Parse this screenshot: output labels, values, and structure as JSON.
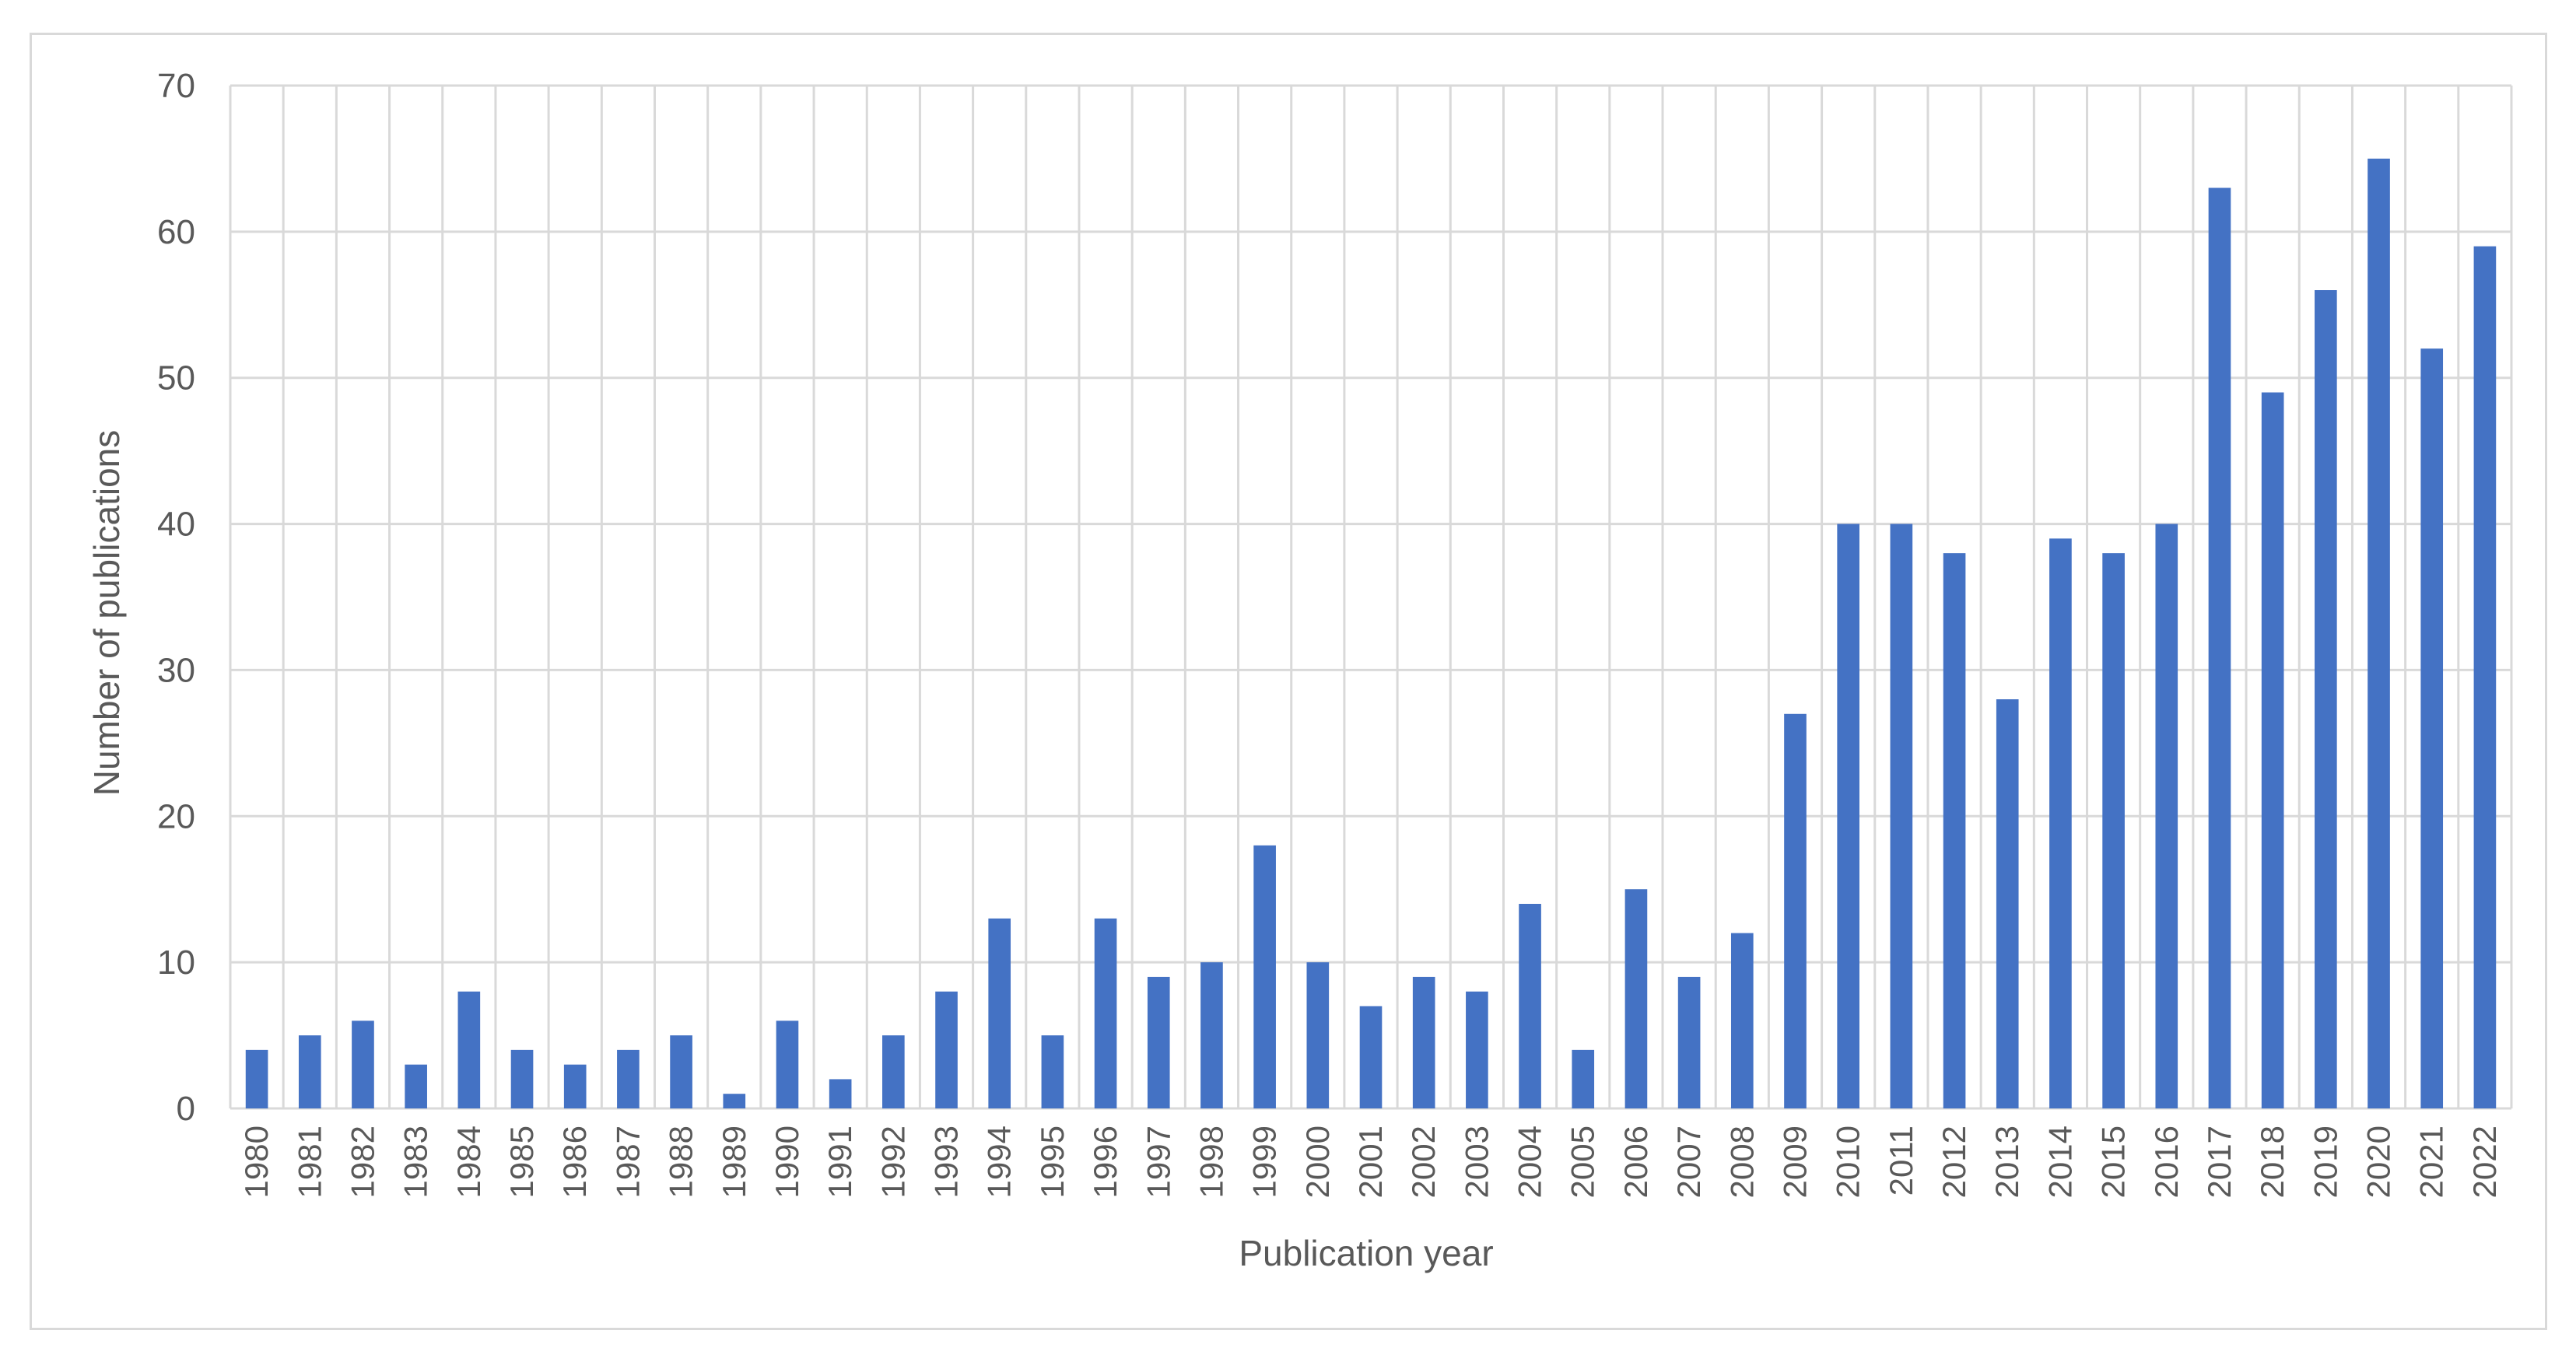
{
  "chart_data": {
    "type": "bar",
    "title": "",
    "xlabel": "Publication year",
    "ylabel": "Number of publications",
    "ylim": [
      0,
      70
    ],
    "yticks": [
      0,
      10,
      20,
      30,
      40,
      50,
      60,
      70
    ],
    "grid": "both",
    "legend": "none",
    "bar_color": "#4472c4",
    "grid_color": "#d9d9d9",
    "categories": [
      "1980",
      "1981",
      "1982",
      "1983",
      "1984",
      "1985",
      "1986",
      "1987",
      "1988",
      "1989",
      "1990",
      "1991",
      "1992",
      "1993",
      "1994",
      "1995",
      "1996",
      "1997",
      "1998",
      "1999",
      "2000",
      "2001",
      "2002",
      "2003",
      "2004",
      "2005",
      "2006",
      "2007",
      "2008",
      "2009",
      "2010",
      "2011",
      "2012",
      "2013",
      "2014",
      "2015",
      "2016",
      "2017",
      "2018",
      "2019",
      "2020",
      "2021",
      "2022"
    ],
    "values": [
      4,
      5,
      6,
      3,
      8,
      4,
      3,
      4,
      5,
      1,
      6,
      2,
      5,
      8,
      13,
      5,
      13,
      9,
      10,
      18,
      10,
      7,
      9,
      8,
      14,
      4,
      15,
      9,
      12,
      27,
      40,
      40,
      38,
      28,
      39,
      38,
      40,
      63,
      49,
      56,
      65,
      52,
      59
    ]
  }
}
